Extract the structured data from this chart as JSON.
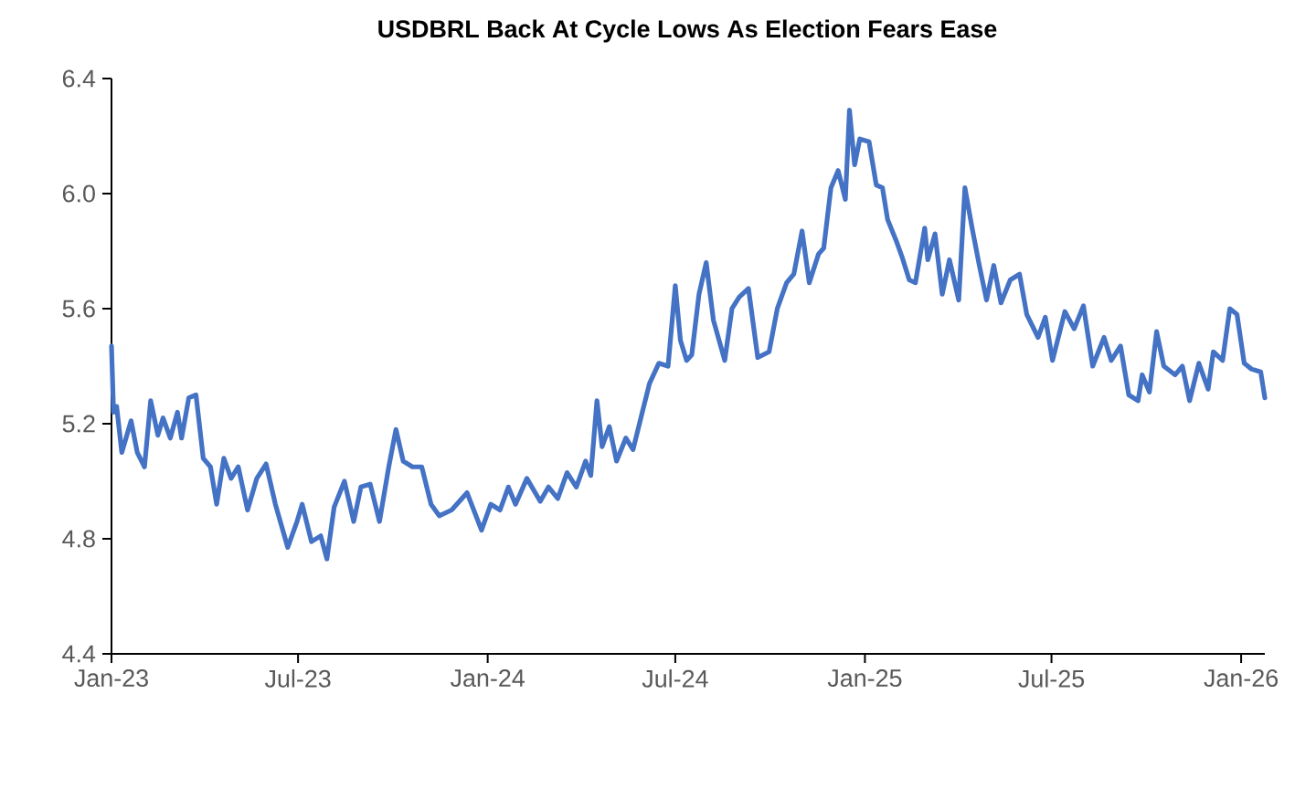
{
  "chart_data": {
    "type": "line",
    "title": "USDBRL Back At Cycle Lows As Election Fears Ease",
    "xlim": [
      "2023-01-01",
      "2026-01-24"
    ],
    "ylim": [
      4.4,
      6.4
    ],
    "xticks": [
      {
        "value": "2023-01-01",
        "label": "Jan-23"
      },
      {
        "value": "2023-07-01",
        "label": "Jul-23"
      },
      {
        "value": "2024-01-01",
        "label": "Jan-24"
      },
      {
        "value": "2024-07-01",
        "label": "Jul-24"
      },
      {
        "value": "2025-01-01",
        "label": "Jan-25"
      },
      {
        "value": "2025-07-01",
        "label": "Jul-25"
      },
      {
        "value": "2026-01-01",
        "label": "Jan-26"
      }
    ],
    "yticks": [
      4.4,
      4.8,
      5.2,
      5.6,
      {
        "value": 6,
        "label": "6.0"
      },
      6.4
    ],
    "grid": false,
    "legend": false,
    "marker": "none",
    "line_style": "solid",
    "series": [
      {
        "color": "#4472c4",
        "x": [
          "2023-01-01",
          "2023-01-03",
          "2023-01-06",
          "2023-01-11",
          "2023-01-20",
          "2023-01-26",
          "2023-02-02",
          "2023-02-08",
          "2023-02-15",
          "2023-02-20",
          "2023-02-27",
          "2023-03-06",
          "2023-03-10",
          "2023-03-17",
          "2023-03-24",
          "2023-03-31",
          "2023-04-07",
          "2023-04-13",
          "2023-04-20",
          "2023-04-27",
          "2023-05-04",
          "2023-05-13",
          "2023-05-22",
          "2023-05-31",
          "2023-06-09",
          "2023-06-21",
          "2023-06-30",
          "2023-07-05",
          "2023-07-14",
          "2023-07-23",
          "2023-07-29",
          "2023-08-05",
          "2023-08-15",
          "2023-08-24",
          "2023-08-31",
          "2023-09-09",
          "2023-09-18",
          "2023-09-27",
          "2023-10-04",
          "2023-10-11",
          "2023-10-20",
          "2023-10-29",
          "2023-11-07",
          "2023-11-15",
          "2023-11-27",
          "2023-12-12",
          "2023-12-26",
          "2024-01-04",
          "2024-01-13",
          "2024-01-21",
          "2024-01-28",
          "2024-02-08",
          "2024-02-21",
          "2024-02-29",
          "2024-03-09",
          "2024-03-18",
          "2024-03-27",
          "2024-04-05",
          "2024-04-10",
          "2024-04-16",
          "2024-04-21",
          "2024-04-28",
          "2024-05-05",
          "2024-05-14",
          "2024-05-21",
          "2024-05-30",
          "2024-06-06",
          "2024-06-15",
          "2024-06-24",
          "2024-07-01",
          "2024-07-06",
          "2024-07-12",
          "2024-07-17",
          "2024-07-24",
          "2024-07-31",
          "2024-08-07",
          "2024-08-18",
          "2024-08-25",
          "2024-09-01",
          "2024-09-10",
          "2024-09-19",
          "2024-09-30",
          "2024-10-08",
          "2024-10-17",
          "2024-10-24",
          "2024-11-01",
          "2024-11-08",
          "2024-11-17",
          "2024-11-22",
          "2024-11-29",
          "2024-12-06",
          "2024-12-13",
          "2024-12-17",
          "2024-12-22",
          "2024-12-27",
          "2025-01-05",
          "2025-01-12",
          "2025-01-18",
          "2025-01-23",
          "2025-02-01",
          "2025-02-06",
          "2025-02-13",
          "2025-02-19",
          "2025-02-28",
          "2025-03-03",
          "2025-03-10",
          "2025-03-17",
          "2025-03-24",
          "2025-04-02",
          "2025-04-08",
          "2025-04-15",
          "2025-04-22",
          "2025-04-29",
          "2025-05-06",
          "2025-05-13",
          "2025-05-22",
          "2025-05-31",
          "2025-06-07",
          "2025-06-18",
          "2025-06-25",
          "2025-07-02",
          "2025-07-14",
          "2025-07-23",
          "2025-08-01",
          "2025-08-10",
          "2025-08-21",
          "2025-08-28",
          "2025-09-06",
          "2025-09-14",
          "2025-09-23",
          "2025-09-27",
          "2025-10-04",
          "2025-10-11",
          "2025-10-18",
          "2025-10-29",
          "2025-11-05",
          "2025-11-12",
          "2025-11-21",
          "2025-11-30",
          "2025-12-05",
          "2025-12-14",
          "2025-12-21",
          "2025-12-28",
          "2026-01-04",
          "2026-01-11",
          "2026-01-20",
          "2026-01-24"
        ],
        "values": [
          5.47,
          5.24,
          5.26,
          5.1,
          5.21,
          5.1,
          5.05,
          5.28,
          5.16,
          5.22,
          5.15,
          5.24,
          5.15,
          5.29,
          5.3,
          5.08,
          5.05,
          4.92,
          5.08,
          5.01,
          5.05,
          4.9,
          5.01,
          5.06,
          4.92,
          4.77,
          4.86,
          4.92,
          4.79,
          4.81,
          4.73,
          4.91,
          5.0,
          4.86,
          4.98,
          4.99,
          4.86,
          5.05,
          5.18,
          5.07,
          5.05,
          5.05,
          4.92,
          4.88,
          4.9,
          4.96,
          4.83,
          4.92,
          4.9,
          4.98,
          4.92,
          5.01,
          4.93,
          4.98,
          4.94,
          5.03,
          4.98,
          5.07,
          5.02,
          5.28,
          5.12,
          5.19,
          5.07,
          5.15,
          5.11,
          5.24,
          5.34,
          5.41,
          5.4,
          5.68,
          5.49,
          5.42,
          5.44,
          5.65,
          5.76,
          5.56,
          5.42,
          5.6,
          5.64,
          5.67,
          5.43,
          5.45,
          5.6,
          5.69,
          5.72,
          5.87,
          5.69,
          5.79,
          5.81,
          6.02,
          6.08,
          5.98,
          6.29,
          6.1,
          6.19,
          6.18,
          6.03,
          6.02,
          5.91,
          5.83,
          5.78,
          5.7,
          5.69,
          5.88,
          5.77,
          5.86,
          5.65,
          5.77,
          5.63,
          6.02,
          5.88,
          5.75,
          5.63,
          5.75,
          5.62,
          5.7,
          5.72,
          5.58,
          5.5,
          5.57,
          5.42,
          5.59,
          5.53,
          5.61,
          5.4,
          5.5,
          5.42,
          5.47,
          5.3,
          5.28,
          5.37,
          5.31,
          5.52,
          5.4,
          5.37,
          5.4,
          5.28,
          5.41,
          5.32,
          5.45,
          5.42,
          5.6,
          5.58,
          5.41,
          5.39,
          5.38,
          5.29
        ]
      }
    ]
  }
}
